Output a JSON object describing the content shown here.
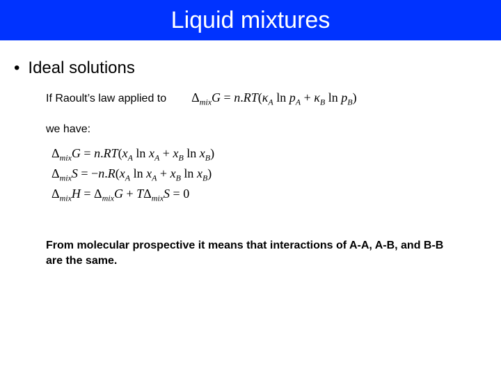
{
  "title": "Liquid mixtures",
  "section": "Ideal solutions",
  "line_intro": "If Raoult’s law applied to",
  "we_have": "we have:",
  "conclusion": "From molecular prospective it means that interactions of A-A, A-B, and B-B are the same.",
  "colors": {
    "title_bar_bg": "#0033ff",
    "title_text": "#ffffff",
    "body_text": "#000000",
    "page_bg": "#ffffff"
  },
  "typography": {
    "title_fontsize": 34,
    "section_fontsize": 24,
    "body_fontsize": 16,
    "equation_fontsize": 18,
    "equation_font": "Times New Roman",
    "body_font": "Arial"
  },
  "equations": {
    "top": "Δ_mix G = n.RT(κ_A ln p_A + κ_B ln p_B)",
    "g": "Δ_mix G = n.RT(x_A ln x_A + x_B ln x_B)",
    "s": "Δ_mix S = −n.R(x_A ln x_A + x_B ln x_B)",
    "h": "Δ_mix H = Δ_mix G + TΔ_mix S = 0"
  }
}
